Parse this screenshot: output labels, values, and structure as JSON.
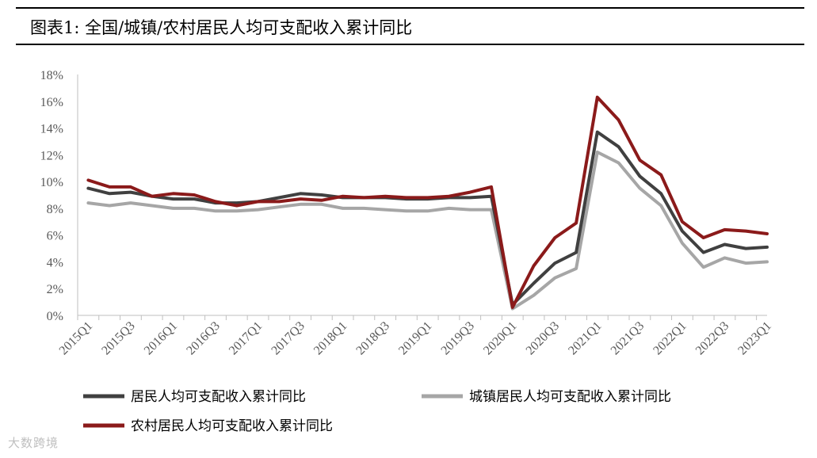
{
  "title": "图表1:  全国/城镇/农村居民人均可支配收入累计同比",
  "watermark": "大数跨境",
  "chart_data": {
    "type": "line",
    "title": "图表1:  全国/城镇/农村居民人均可支配收入累计同比",
    "xlabel": "",
    "ylabel": "",
    "ylim": [
      0,
      18
    ],
    "yticks": [
      "0%",
      "2%",
      "4%",
      "6%",
      "8%",
      "10%",
      "12%",
      "14%",
      "16%",
      "18%"
    ],
    "categories": [
      "2015Q1",
      "2015Q2",
      "2015Q3",
      "2015Q4",
      "2016Q1",
      "2016Q2",
      "2016Q3",
      "2016Q4",
      "2017Q1",
      "2017Q2",
      "2017Q3",
      "2017Q4",
      "2018Q1",
      "2018Q2",
      "2018Q3",
      "2018Q4",
      "2019Q1",
      "2019Q2",
      "2019Q3",
      "2019Q4",
      "2020Q1",
      "2020Q2",
      "2020Q3",
      "2020Q4",
      "2021Q1",
      "2021Q2",
      "2021Q3",
      "2021Q4",
      "2022Q1",
      "2022Q2",
      "2022Q3",
      "2022Q4",
      "2023Q1"
    ],
    "xtick_labels": [
      "2015Q1",
      "2015Q3",
      "2016Q1",
      "2016Q3",
      "2017Q1",
      "2017Q3",
      "2018Q1",
      "2018Q3",
      "2019Q1",
      "2019Q3",
      "2020Q1",
      "2020Q3",
      "2021Q1",
      "2021Q3",
      "2022Q1",
      "2022Q3",
      "2023Q1"
    ],
    "legend_position": "bottom",
    "grid": false,
    "series": [
      {
        "name": "居民人均可支配收入累计同比",
        "color": "#404040",
        "values": [
          9.5,
          9.1,
          9.2,
          8.9,
          8.7,
          8.7,
          8.4,
          8.4,
          8.5,
          8.8,
          9.1,
          9.0,
          8.8,
          8.8,
          8.8,
          8.7,
          8.7,
          8.8,
          8.8,
          8.9,
          0.8,
          2.4,
          3.9,
          4.7,
          13.7,
          12.6,
          10.4,
          9.1,
          6.3,
          4.7,
          5.3,
          5.0,
          5.1
        ]
      },
      {
        "name": "城镇居民人均可支配收入累计同比",
        "color": "#a6a6a6",
        "values": [
          8.4,
          8.2,
          8.4,
          8.2,
          8.0,
          8.0,
          7.8,
          7.8,
          7.9,
          8.1,
          8.3,
          8.3,
          8.0,
          8.0,
          7.9,
          7.8,
          7.8,
          8.0,
          7.9,
          7.9,
          0.5,
          1.5,
          2.8,
          3.5,
          12.2,
          11.4,
          9.5,
          8.2,
          5.4,
          3.6,
          4.3,
          3.9,
          4.0
        ]
      },
      {
        "name": "农村居民人均可支配收入累计同比",
        "color": "#8b1a1a",
        "values": [
          10.1,
          9.6,
          9.6,
          8.9,
          9.1,
          9.0,
          8.5,
          8.2,
          8.5,
          8.5,
          8.7,
          8.6,
          8.9,
          8.8,
          8.9,
          8.8,
          8.8,
          8.9,
          9.2,
          9.6,
          0.6,
          3.7,
          5.8,
          6.9,
          16.3,
          14.6,
          11.6,
          10.5,
          7.0,
          5.8,
          6.4,
          6.3,
          6.1
        ]
      }
    ]
  }
}
